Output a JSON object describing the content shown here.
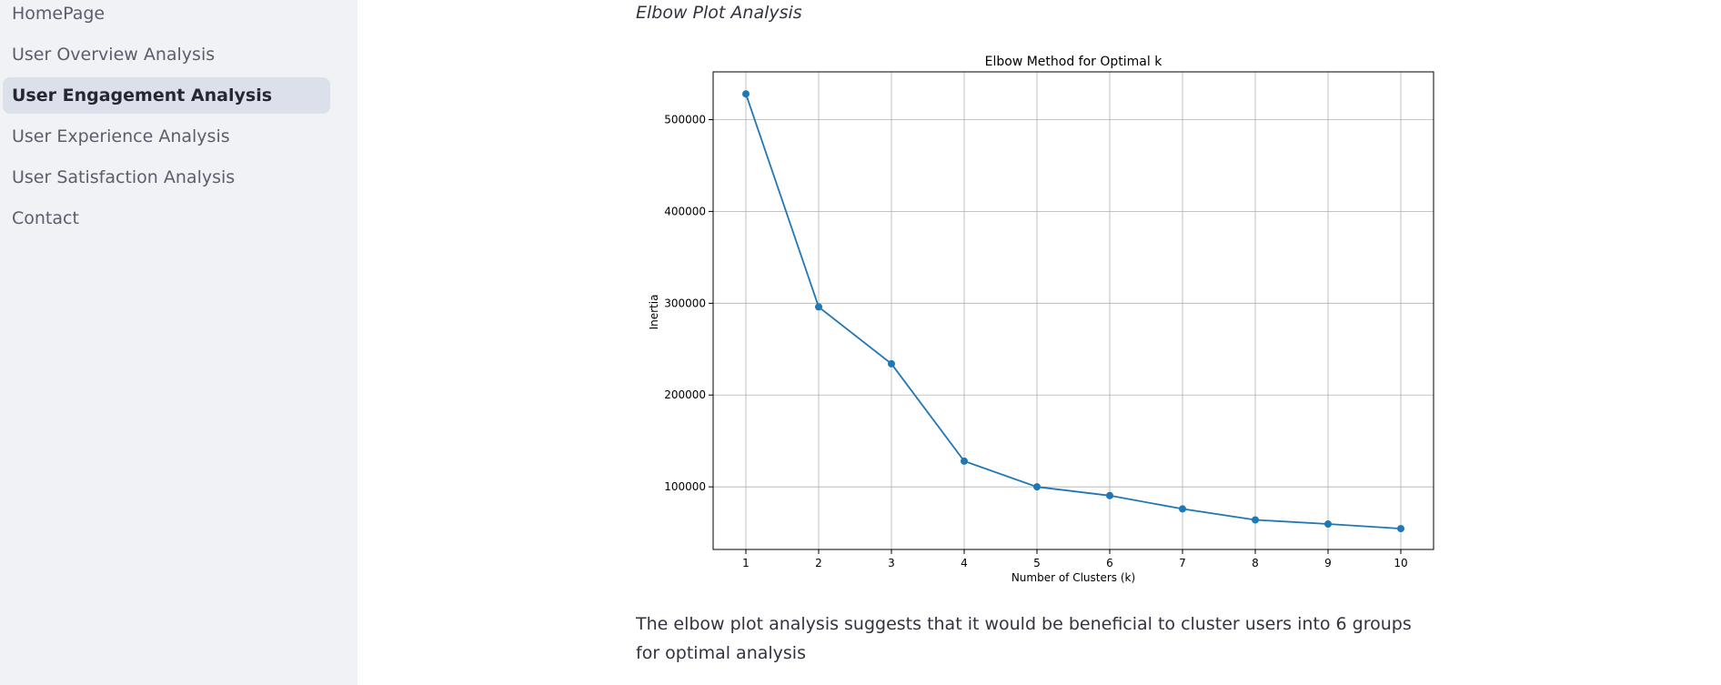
{
  "sidebar": {
    "items": [
      {
        "label": "HomePage",
        "active": false
      },
      {
        "label": "User Overview Analysis",
        "active": false
      },
      {
        "label": "User Engagement Analysis",
        "active": true
      },
      {
        "label": "User Experience Analysis",
        "active": false
      },
      {
        "label": "User Satisfaction Analysis",
        "active": false
      },
      {
        "label": "Contact",
        "active": false
      }
    ]
  },
  "main": {
    "heading": "Elbow Plot Analysis",
    "caption": "The elbow plot analysis suggests that it would be beneficial to cluster users into 6 groups for optimal analysis"
  },
  "colors": {
    "series": "#1f77b4",
    "sidebar_bg": "#f0f2f6",
    "active_item_bg": "#dbe0ea",
    "grid": "#b0b0b0"
  },
  "chart_data": {
    "type": "line",
    "title": "Elbow Method for Optimal k",
    "xlabel": "Number of Clusters (k)",
    "ylabel": "Inertia",
    "x": [
      1,
      2,
      3,
      4,
      5,
      6,
      7,
      8,
      9,
      10
    ],
    "y": [
      528000,
      296000,
      234000,
      128000,
      100000,
      90500,
      76000,
      64000,
      59500,
      54500
    ],
    "xticks": [
      1,
      2,
      3,
      4,
      5,
      6,
      7,
      8,
      9,
      10
    ],
    "yticks": [
      100000,
      200000,
      300000,
      400000,
      500000
    ],
    "xlim": [
      0.55,
      10.45
    ],
    "ylim": [
      31800,
      552000
    ],
    "grid": true,
    "marker": "circle"
  }
}
